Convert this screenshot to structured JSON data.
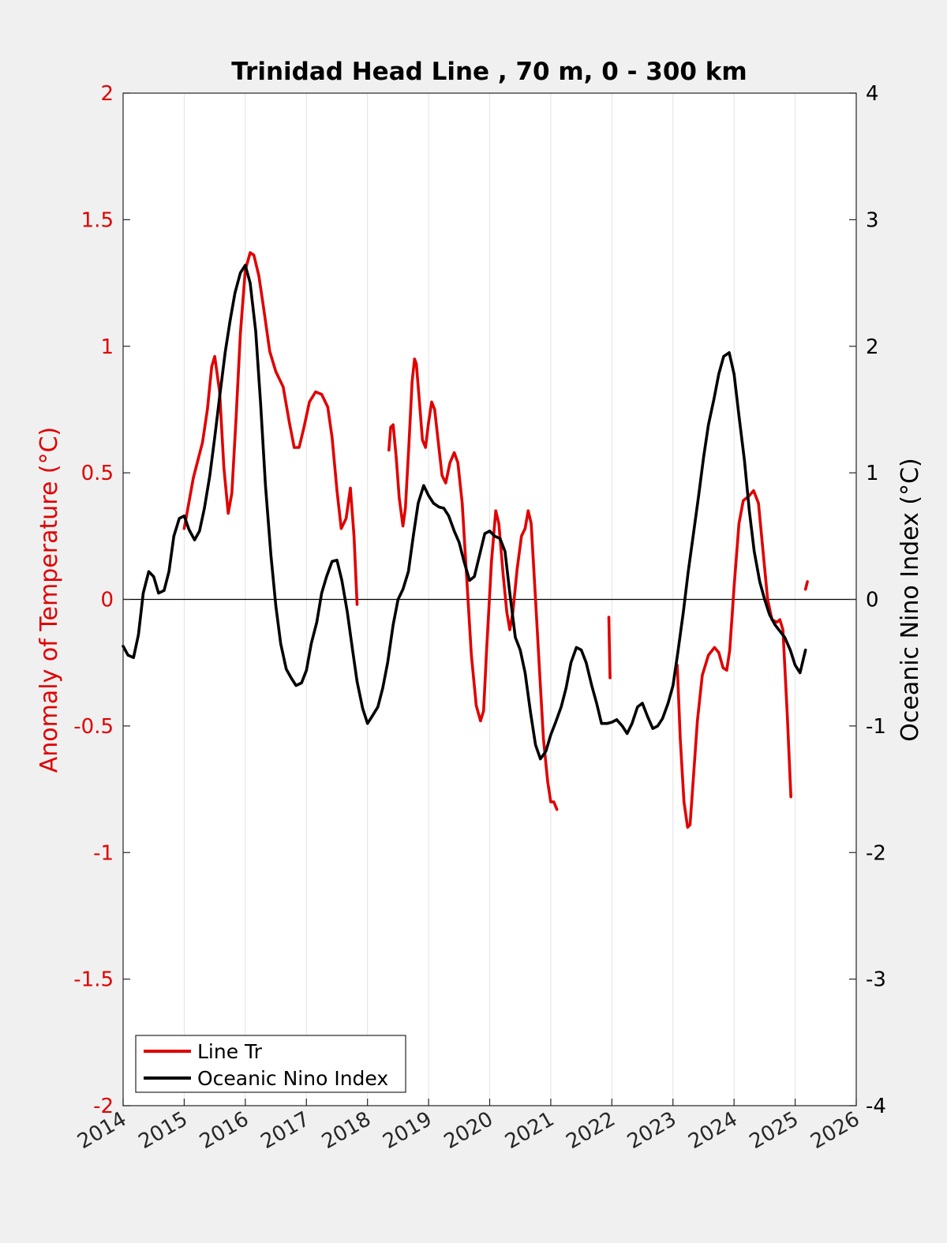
{
  "chart_data": {
    "type": "line",
    "title": "Trinidad Head Line , 70 m, 0 - 300 km",
    "xlim": [
      2014,
      2026
    ],
    "x_ticks": [
      "2014",
      "2015",
      "2016",
      "2017",
      "2018",
      "2019",
      "2020",
      "2021",
      "2022",
      "2023",
      "2024",
      "2025",
      "2026"
    ],
    "left_axis": {
      "label": "Anomaly of Temperature (°C)",
      "color": "#e00000",
      "ylim": [
        -2,
        2
      ],
      "ticks": [
        "-2",
        "-1.5",
        "-1",
        "-0.5",
        "0",
        "0.5",
        "1",
        "1.5",
        "2"
      ]
    },
    "right_axis": {
      "label": "Oceanic Nino Index (°C)",
      "color": "#000000",
      "ylim": [
        -4,
        4
      ],
      "ticks": [
        "-4",
        "-3",
        "-2",
        "-1",
        "0",
        "1",
        "2",
        "3",
        "4"
      ]
    },
    "zero_line": true,
    "grid": "vertical",
    "legend_position": "bottom-left",
    "series": [
      {
        "name": "Line Tr",
        "axis": "left",
        "color": "#e00000",
        "segments": [
          [
            [
              2015.0,
              0.28
            ],
            [
              2015.15,
              0.48
            ],
            [
              2015.3,
              0.62
            ],
            [
              2015.38,
              0.75
            ],
            [
              2015.45,
              0.92
            ],
            [
              2015.5,
              0.96
            ],
            [
              2015.58,
              0.82
            ],
            [
              2015.65,
              0.52
            ],
            [
              2015.72,
              0.34
            ],
            [
              2015.78,
              0.42
            ],
            [
              2015.85,
              0.72
            ],
            [
              2015.92,
              1.05
            ],
            [
              2016.0,
              1.3
            ],
            [
              2016.08,
              1.37
            ],
            [
              2016.14,
              1.36
            ],
            [
              2016.22,
              1.28
            ],
            [
              2016.3,
              1.15
            ],
            [
              2016.4,
              0.98
            ],
            [
              2016.5,
              0.9
            ],
            [
              2016.62,
              0.84
            ],
            [
              2016.72,
              0.7
            ],
            [
              2016.8,
              0.6
            ],
            [
              2016.88,
              0.6
            ],
            [
              2016.96,
              0.68
            ],
            [
              2017.05,
              0.78
            ],
            [
              2017.15,
              0.82
            ],
            [
              2017.25,
              0.81
            ],
            [
              2017.35,
              0.76
            ],
            [
              2017.42,
              0.64
            ],
            [
              2017.5,
              0.43
            ],
            [
              2017.57,
              0.28
            ],
            [
              2017.65,
              0.32
            ],
            [
              2017.72,
              0.44
            ],
            [
              2017.78,
              0.25
            ],
            [
              2017.83,
              -0.02
            ]
          ],
          [
            [
              2018.35,
              0.59
            ],
            [
              2018.38,
              0.68
            ],
            [
              2018.42,
              0.69
            ],
            [
              2018.47,
              0.56
            ],
            [
              2018.52,
              0.4
            ],
            [
              2018.58,
              0.29
            ],
            [
              2018.62,
              0.36
            ],
            [
              2018.68,
              0.62
            ],
            [
              2018.73,
              0.86
            ],
            [
              2018.77,
              0.95
            ],
            [
              2018.8,
              0.93
            ],
            [
              2018.85,
              0.78
            ],
            [
              2018.9,
              0.63
            ],
            [
              2018.95,
              0.6
            ],
            [
              2019.0,
              0.7
            ],
            [
              2019.05,
              0.78
            ],
            [
              2019.1,
              0.75
            ],
            [
              2019.15,
              0.64
            ],
            [
              2019.22,
              0.49
            ],
            [
              2019.28,
              0.46
            ],
            [
              2019.35,
              0.54
            ],
            [
              2019.42,
              0.58
            ],
            [
              2019.48,
              0.54
            ],
            [
              2019.55,
              0.38
            ],
            [
              2019.62,
              0.1
            ],
            [
              2019.7,
              -0.22
            ],
            [
              2019.78,
              -0.42
            ],
            [
              2019.85,
              -0.48
            ],
            [
              2019.9,
              -0.44
            ],
            [
              2019.95,
              -0.2
            ],
            [
              2020.03,
              0.15
            ],
            [
              2020.1,
              0.35
            ],
            [
              2020.15,
              0.3
            ],
            [
              2020.22,
              0.1
            ],
            [
              2020.28,
              -0.05
            ],
            [
              2020.33,
              -0.12
            ],
            [
              2020.38,
              -0.05
            ],
            [
              2020.45,
              0.12
            ],
            [
              2020.52,
              0.25
            ],
            [
              2020.58,
              0.28
            ],
            [
              2020.63,
              0.35
            ],
            [
              2020.68,
              0.3
            ],
            [
              2020.75,
              0.0
            ],
            [
              2020.82,
              -0.3
            ],
            [
              2020.88,
              -0.55
            ],
            [
              2020.95,
              -0.72
            ],
            [
              2021.0,
              -0.8
            ],
            [
              2021.05,
              -0.8
            ],
            [
              2021.1,
              -0.83
            ]
          ],
          [
            [
              2021.95,
              -0.07
            ],
            [
              2021.97,
              -0.31
            ]
          ],
          [
            [
              2023.07,
              -0.26
            ],
            [
              2023.12,
              -0.55
            ],
            [
              2023.18,
              -0.8
            ],
            [
              2023.24,
              -0.9
            ],
            [
              2023.28,
              -0.89
            ],
            [
              2023.33,
              -0.72
            ],
            [
              2023.4,
              -0.48
            ],
            [
              2023.48,
              -0.3
            ],
            [
              2023.58,
              -0.22
            ],
            [
              2023.68,
              -0.19
            ],
            [
              2023.75,
              -0.21
            ],
            [
              2023.82,
              -0.27
            ],
            [
              2023.88,
              -0.28
            ],
            [
              2023.93,
              -0.2
            ],
            [
              2024.0,
              0.05
            ],
            [
              2024.08,
              0.3
            ],
            [
              2024.15,
              0.39
            ],
            [
              2024.25,
              0.41
            ],
            [
              2024.32,
              0.43
            ],
            [
              2024.4,
              0.38
            ],
            [
              2024.47,
              0.2
            ],
            [
              2024.55,
              0.0
            ],
            [
              2024.62,
              -0.08
            ],
            [
              2024.7,
              -0.09
            ],
            [
              2024.75,
              -0.08
            ],
            [
              2024.8,
              -0.12
            ],
            [
              2024.87,
              -0.45
            ],
            [
              2024.93,
              -0.78
            ]
          ],
          [
            [
              2025.17,
              0.04
            ],
            [
              2025.2,
              0.07
            ]
          ]
        ]
      },
      {
        "name": "Oceanic Nino Index",
        "axis": "right",
        "color": "#000000",
        "segments": [
          [
            [
              2014.0,
              -0.37
            ],
            [
              2014.08,
              -0.44
            ],
            [
              2014.17,
              -0.46
            ],
            [
              2014.25,
              -0.28
            ],
            [
              2014.33,
              0.05
            ],
            [
              2014.42,
              0.22
            ],
            [
              2014.5,
              0.18
            ],
            [
              2014.58,
              0.05
            ],
            [
              2014.67,
              0.07
            ],
            [
              2014.75,
              0.22
            ],
            [
              2014.83,
              0.5
            ],
            [
              2014.92,
              0.64
            ],
            [
              2015.0,
              0.66
            ],
            [
              2015.08,
              0.55
            ],
            [
              2015.17,
              0.47
            ],
            [
              2015.25,
              0.54
            ],
            [
              2015.33,
              0.72
            ],
            [
              2015.42,
              0.98
            ],
            [
              2015.5,
              1.28
            ],
            [
              2015.58,
              1.6
            ],
            [
              2015.67,
              1.95
            ],
            [
              2015.75,
              2.2
            ],
            [
              2015.83,
              2.42
            ],
            [
              2015.92,
              2.58
            ],
            [
              2016.0,
              2.64
            ],
            [
              2016.08,
              2.5
            ],
            [
              2016.17,
              2.12
            ],
            [
              2016.25,
              1.55
            ],
            [
              2016.33,
              0.9
            ],
            [
              2016.42,
              0.35
            ],
            [
              2016.5,
              -0.05
            ],
            [
              2016.58,
              -0.35
            ],
            [
              2016.67,
              -0.55
            ],
            [
              2016.75,
              -0.62
            ],
            [
              2016.83,
              -0.68
            ],
            [
              2016.92,
              -0.66
            ],
            [
              2017.0,
              -0.56
            ],
            [
              2017.08,
              -0.35
            ],
            [
              2017.17,
              -0.18
            ],
            [
              2017.25,
              0.05
            ],
            [
              2017.33,
              0.18
            ],
            [
              2017.42,
              0.3
            ],
            [
              2017.5,
              0.31
            ],
            [
              2017.58,
              0.15
            ],
            [
              2017.67,
              -0.1
            ],
            [
              2017.75,
              -0.38
            ],
            [
              2017.83,
              -0.65
            ],
            [
              2017.92,
              -0.86
            ],
            [
              2018.0,
              -0.98
            ],
            [
              2018.08,
              -0.92
            ],
            [
              2018.17,
              -0.85
            ],
            [
              2018.25,
              -0.7
            ],
            [
              2018.33,
              -0.5
            ],
            [
              2018.42,
              -0.2
            ],
            [
              2018.5,
              0.0
            ],
            [
              2018.58,
              0.08
            ],
            [
              2018.67,
              0.22
            ],
            [
              2018.75,
              0.5
            ],
            [
              2018.83,
              0.76
            ],
            [
              2018.92,
              0.9
            ],
            [
              2019.0,
              0.82
            ],
            [
              2019.08,
              0.76
            ],
            [
              2019.17,
              0.73
            ],
            [
              2019.25,
              0.72
            ],
            [
              2019.33,
              0.66
            ],
            [
              2019.42,
              0.54
            ],
            [
              2019.5,
              0.45
            ],
            [
              2019.58,
              0.3
            ],
            [
              2019.67,
              0.15
            ],
            [
              2019.75,
              0.18
            ],
            [
              2019.83,
              0.34
            ],
            [
              2019.92,
              0.52
            ],
            [
              2020.0,
              0.54
            ],
            [
              2020.08,
              0.5
            ],
            [
              2020.17,
              0.48
            ],
            [
              2020.25,
              0.38
            ],
            [
              2020.33,
              0.05
            ],
            [
              2020.42,
              -0.3
            ],
            [
              2020.5,
              -0.4
            ],
            [
              2020.58,
              -0.58
            ],
            [
              2020.67,
              -0.9
            ],
            [
              2020.75,
              -1.15
            ],
            [
              2020.83,
              -1.26
            ],
            [
              2020.92,
              -1.2
            ],
            [
              2021.0,
              -1.07
            ],
            [
              2021.08,
              -0.97
            ],
            [
              2021.17,
              -0.85
            ],
            [
              2021.25,
              -0.7
            ],
            [
              2021.33,
              -0.5
            ],
            [
              2021.42,
              -0.38
            ],
            [
              2021.5,
              -0.4
            ],
            [
              2021.58,
              -0.5
            ],
            [
              2021.67,
              -0.68
            ],
            [
              2021.75,
              -0.82
            ],
            [
              2021.83,
              -0.98
            ],
            [
              2021.92,
              -0.98
            ],
            [
              2022.0,
              -0.97
            ],
            [
              2022.08,
              -0.95
            ],
            [
              2022.17,
              -1.0
            ],
            [
              2022.25,
              -1.06
            ],
            [
              2022.33,
              -0.98
            ],
            [
              2022.42,
              -0.85
            ],
            [
              2022.5,
              -0.82
            ],
            [
              2022.58,
              -0.92
            ],
            [
              2022.67,
              -1.02
            ],
            [
              2022.75,
              -1.0
            ],
            [
              2022.83,
              -0.94
            ],
            [
              2022.92,
              -0.82
            ],
            [
              2023.0,
              -0.68
            ],
            [
              2023.08,
              -0.42
            ],
            [
              2023.17,
              -0.1
            ],
            [
              2023.25,
              0.22
            ],
            [
              2023.33,
              0.5
            ],
            [
              2023.42,
              0.82
            ],
            [
              2023.5,
              1.12
            ],
            [
              2023.58,
              1.38
            ],
            [
              2023.67,
              1.58
            ],
            [
              2023.75,
              1.78
            ],
            [
              2023.83,
              1.92
            ],
            [
              2023.92,
              1.95
            ],
            [
              2024.0,
              1.78
            ],
            [
              2024.08,
              1.45
            ],
            [
              2024.17,
              1.1
            ],
            [
              2024.25,
              0.7
            ],
            [
              2024.33,
              0.38
            ],
            [
              2024.42,
              0.14
            ],
            [
              2024.5,
              0.0
            ],
            [
              2024.58,
              -0.12
            ],
            [
              2024.67,
              -0.2
            ],
            [
              2024.75,
              -0.25
            ],
            [
              2024.83,
              -0.3
            ],
            [
              2024.92,
              -0.4
            ],
            [
              2025.0,
              -0.52
            ],
            [
              2025.08,
              -0.58
            ],
            [
              2025.17,
              -0.4
            ]
          ]
        ]
      }
    ]
  }
}
